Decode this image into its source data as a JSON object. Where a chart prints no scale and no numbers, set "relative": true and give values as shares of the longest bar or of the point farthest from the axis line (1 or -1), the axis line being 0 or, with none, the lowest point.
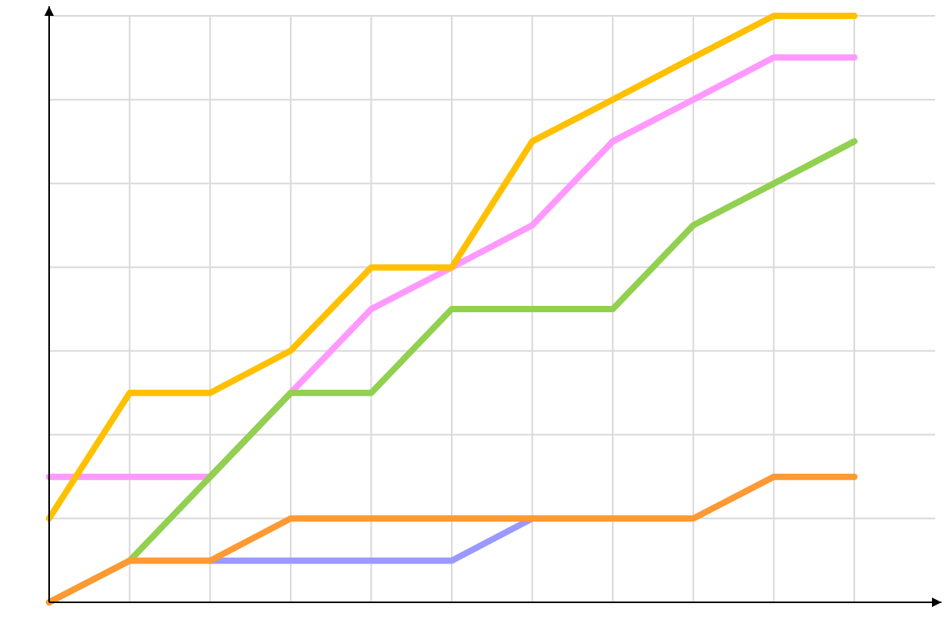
{
  "chart_data": {
    "type": "line",
    "relative": true,
    "grid": true,
    "categories": [
      null,
      null,
      null,
      null,
      null,
      null,
      null,
      null,
      null,
      null,
      null
    ],
    "series": [
      {
        "color": "#ff99ff",
        "values": [
          0.214,
          0.214,
          0.214,
          0.357,
          0.5,
          0.571,
          0.643,
          0.786,
          0.857,
          0.929,
          0.929
        ]
      },
      {
        "color": "#9999ff",
        "values": [
          null,
          null,
          0.071,
          0.071,
          0.071,
          0.071,
          0.143,
          null,
          null,
          null,
          null
        ]
      },
      {
        "color": "#92d050",
        "values": [
          0,
          0.071,
          0.214,
          0.357,
          0.357,
          0.5,
          0.5,
          0.5,
          0.643,
          0.714,
          0.786
        ]
      },
      {
        "color": "#ff9933",
        "values": [
          0,
          0.071,
          0.071,
          0.143,
          0.143,
          0.143,
          0.143,
          0.143,
          0.143,
          0.214,
          0.214
        ]
      },
      {
        "color": "#ffc000",
        "values": [
          0.143,
          0.357,
          0.357,
          0.429,
          0.571,
          0.571,
          0.786,
          0.857,
          0.929,
          1,
          1
        ]
      }
    ]
  }
}
